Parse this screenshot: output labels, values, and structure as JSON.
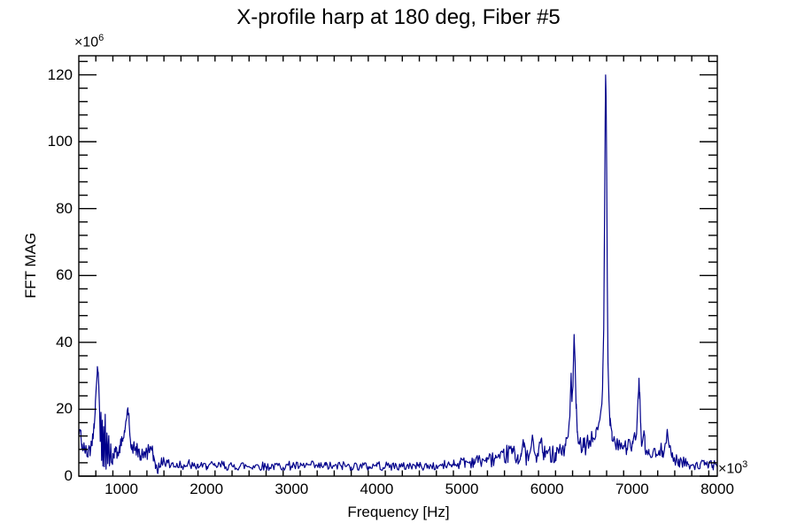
{
  "chart_data": {
    "type": "line",
    "title": "X-profile harp at 180 deg, Fiber #5",
    "xlabel": "Frequency [Hz]",
    "ylabel": "FFT MAG",
    "x_exponent": {
      "base": "×10",
      "sup": "3"
    },
    "y_exponent": {
      "base": "×10",
      "sup": "6"
    },
    "xlim": [
      500,
      8000
    ],
    "ylim": [
      0,
      125.7
    ],
    "x_ticks": [
      1000,
      2000,
      3000,
      4000,
      5000,
      6000,
      7000,
      8000
    ],
    "x_minor_step": 200,
    "y_ticks": [
      0,
      20,
      40,
      60,
      80,
      100,
      120
    ],
    "y_minor_step": 4,
    "grid": false,
    "legend_position": "none",
    "line_color": "#00008b",
    "frame_color": "#000000",
    "background": "#ffffff",
    "noise": {
      "seed": 42,
      "rel_amp": 0.45,
      "min_amp": 1.1,
      "max_amp": 2.8,
      "step": 12
    },
    "series": [
      {
        "points": [
          [
            500,
            12
          ],
          [
            512,
            14
          ],
          [
            525,
            11.5
          ],
          [
            540,
            9.5
          ],
          [
            558,
            8
          ],
          [
            575,
            7.2
          ],
          [
            592,
            6.8
          ],
          [
            610,
            7.5
          ],
          [
            628,
            8.5
          ],
          [
            645,
            10
          ],
          [
            662,
            12.5
          ],
          [
            678,
            16
          ],
          [
            695,
            22
          ],
          [
            708,
            28
          ],
          [
            718,
            32.5
          ],
          [
            726,
            31
          ],
          [
            735,
            27
          ],
          [
            744,
            20
          ],
          [
            752,
            11
          ],
          [
            760,
            19
          ],
          [
            768,
            5
          ],
          [
            776,
            16.5
          ],
          [
            783,
            3.2
          ],
          [
            792,
            14.5
          ],
          [
            800,
            2.6
          ],
          [
            810,
            18.5
          ],
          [
            820,
            2.2
          ],
          [
            830,
            13.5
          ],
          [
            840,
            3.6
          ],
          [
            852,
            11.5
          ],
          [
            862,
            3.2
          ],
          [
            875,
            9
          ],
          [
            888,
            4.6
          ],
          [
            900,
            7
          ],
          [
            915,
            5.2
          ],
          [
            930,
            7.8
          ],
          [
            948,
            5.6
          ],
          [
            965,
            6.5
          ],
          [
            982,
            7.5
          ],
          [
            1000,
            9
          ],
          [
            1018,
            11
          ],
          [
            1036,
            13.5
          ],
          [
            1052,
            16
          ],
          [
            1068,
            19.5
          ],
          [
            1080,
            18
          ],
          [
            1092,
            15
          ],
          [
            1105,
            11
          ],
          [
            1120,
            8.5
          ],
          [
            1138,
            7.8
          ],
          [
            1155,
            8.2
          ],
          [
            1175,
            6.8
          ],
          [
            1198,
            7.6
          ],
          [
            1222,
            6.2
          ],
          [
            1248,
            7.4
          ],
          [
            1275,
            6.4
          ],
          [
            1302,
            7
          ],
          [
            1330,
            7.8
          ],
          [
            1355,
            7.2
          ],
          [
            1378,
            6
          ],
          [
            1398,
            4
          ],
          [
            1415,
            2.6
          ],
          [
            1428,
            0.9
          ],
          [
            1440,
            4.4
          ],
          [
            1458,
            2.4
          ],
          [
            1476,
            4.2
          ],
          [
            1498,
            5.4
          ],
          [
            1518,
            3
          ],
          [
            1542,
            4.8
          ],
          [
            1568,
            2.6
          ],
          [
            1598,
            3.8
          ],
          [
            1645,
            3.2
          ],
          [
            1695,
            3.9
          ],
          [
            1748,
            3
          ],
          [
            1798,
            3.6
          ],
          [
            1850,
            2.8
          ],
          [
            1900,
            3.3
          ],
          [
            1952,
            2.7
          ],
          [
            2005,
            3.2
          ],
          [
            2100,
            2.9
          ],
          [
            2200,
            3.3
          ],
          [
            2300,
            2.8
          ],
          [
            2400,
            3.2
          ],
          [
            2500,
            2.9
          ],
          [
            2600,
            3.3
          ],
          [
            2700,
            2.8
          ],
          [
            2800,
            3.1
          ],
          [
            2900,
            2.9
          ],
          [
            3000,
            3.2
          ],
          [
            3100,
            2.8
          ],
          [
            3200,
            3.3
          ],
          [
            3300,
            2.9
          ],
          [
            3400,
            3.1
          ],
          [
            3500,
            2.8
          ],
          [
            3600,
            3.2
          ],
          [
            3700,
            2.9
          ],
          [
            3800,
            3.1
          ],
          [
            3900,
            2.8
          ],
          [
            4000,
            3.2
          ],
          [
            4100,
            2.9
          ],
          [
            4200,
            3.1
          ],
          [
            4300,
            2.8
          ],
          [
            4400,
            3.2
          ],
          [
            4500,
            2.9
          ],
          [
            4600,
            3.1
          ],
          [
            4700,
            3
          ],
          [
            4800,
            3.3
          ],
          [
            4900,
            3.6
          ],
          [
            4980,
            3.9
          ],
          [
            5040,
            4.4
          ],
          [
            5090,
            4
          ],
          [
            5140,
            4.9
          ],
          [
            5190,
            4.3
          ],
          [
            5240,
            5.1
          ],
          [
            5290,
            4.5
          ],
          [
            5340,
            4.9
          ],
          [
            5395,
            5.4
          ],
          [
            5445,
            4.8
          ],
          [
            5495,
            5.8
          ],
          [
            5545,
            6.8
          ],
          [
            5595,
            7.8
          ],
          [
            5625,
            5.6
          ],
          [
            5658,
            6.1
          ],
          [
            5695,
            6.6
          ],
          [
            5728,
            8.8
          ],
          [
            5758,
            5.6
          ],
          [
            5795,
            6.1
          ],
          [
            5828,
            11.8
          ],
          [
            5848,
            7.8
          ],
          [
            5868,
            5.6
          ],
          [
            5898,
            6.6
          ],
          [
            5928,
            10.8
          ],
          [
            5952,
            7
          ],
          [
            5978,
            6.1
          ],
          [
            6002,
            6.6
          ],
          [
            6028,
            7.4
          ],
          [
            6058,
            6.6
          ],
          [
            6098,
            7
          ],
          [
            6138,
            7.5
          ],
          [
            6178,
            8
          ],
          [
            6218,
            9
          ],
          [
            6248,
            12
          ],
          [
            6268,
            18
          ],
          [
            6283,
            31
          ],
          [
            6293,
            22
          ],
          [
            6305,
            27
          ],
          [
            6318,
            42
          ],
          [
            6330,
            34
          ],
          [
            6342,
            20
          ],
          [
            6355,
            12.5
          ],
          [
            6375,
            9.6
          ],
          [
            6400,
            9
          ],
          [
            6430,
            8.6
          ],
          [
            6462,
            9.2
          ],
          [
            6500,
            10
          ],
          [
            6538,
            11.4
          ],
          [
            6575,
            13.2
          ],
          [
            6608,
            15.8
          ],
          [
            6632,
            19.5
          ],
          [
            6652,
            26
          ],
          [
            6666,
            44
          ],
          [
            6676,
            78
          ],
          [
            6683,
            106
          ],
          [
            6688,
            120
          ],
          [
            6694,
            113
          ],
          [
            6701,
            90
          ],
          [
            6708,
            58
          ],
          [
            6716,
            34
          ],
          [
            6728,
            23
          ],
          [
            6742,
            17
          ],
          [
            6762,
            13.5
          ],
          [
            6788,
            11.6
          ],
          [
            6818,
            10.2
          ],
          [
            6858,
            9.4
          ],
          [
            6898,
            9
          ],
          [
            6938,
            8.7
          ],
          [
            6978,
            9
          ],
          [
            7008,
            9.6
          ],
          [
            7038,
            11
          ],
          [
            7058,
            16
          ],
          [
            7070,
            24
          ],
          [
            7080,
            29
          ],
          [
            7089,
            25
          ],
          [
            7099,
            16
          ],
          [
            7110,
            8.5
          ],
          [
            7124,
            10.5
          ],
          [
            7138,
            13
          ],
          [
            7152,
            8.5
          ],
          [
            7172,
            7.2
          ],
          [
            7198,
            6.8
          ],
          [
            7238,
            6.3
          ],
          [
            7278,
            6.1
          ],
          [
            7318,
            6.4
          ],
          [
            7358,
            7.6
          ],
          [
            7388,
            10.4
          ],
          [
            7408,
            13
          ],
          [
            7422,
            11.2
          ],
          [
            7442,
            8.4
          ],
          [
            7468,
            5.8
          ],
          [
            7498,
            5.1
          ],
          [
            7548,
            4.6
          ],
          [
            7598,
            4.3
          ],
          [
            7648,
            3.9
          ],
          [
            7698,
            3.6
          ],
          [
            7748,
            3.4
          ],
          [
            7798,
            3.2
          ],
          [
            7848,
            3.5
          ],
          [
            7898,
            3.2
          ],
          [
            7948,
            3.4
          ],
          [
            8000,
            3
          ]
        ]
      }
    ]
  }
}
